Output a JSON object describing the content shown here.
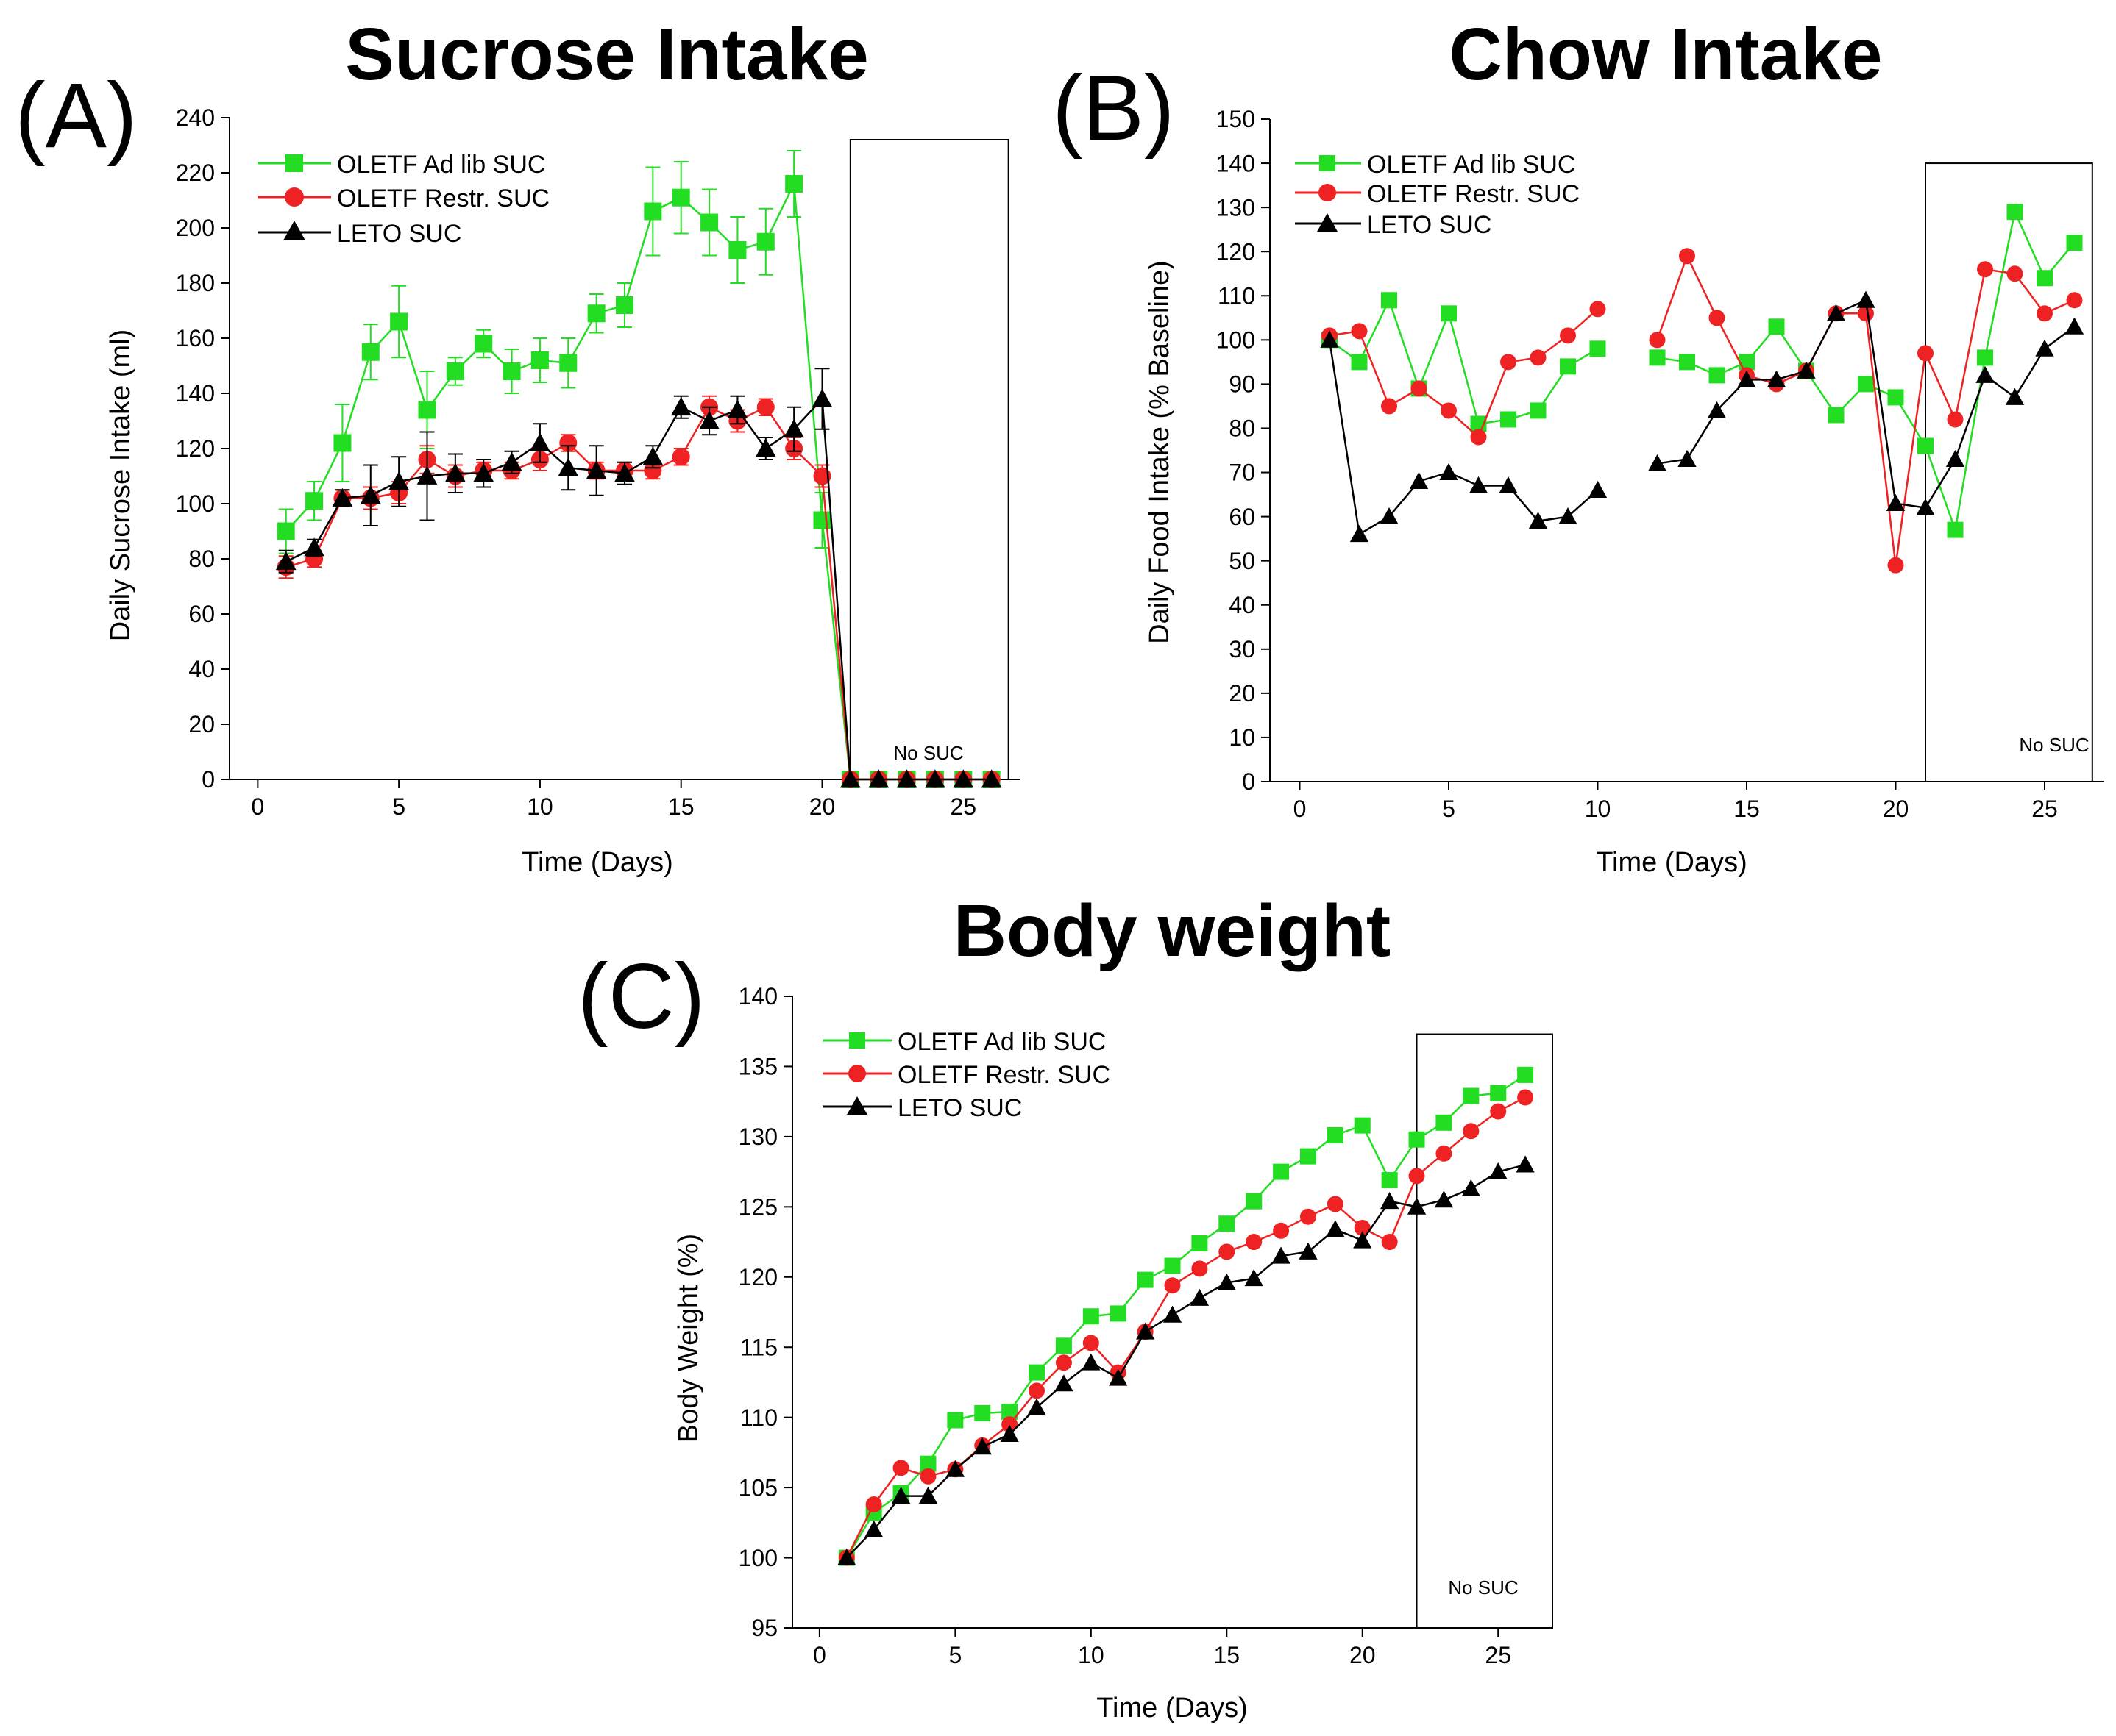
{
  "figure": {
    "legend_placement": "top-left",
    "grid": false,
    "panels": [
      {
        "letter": "(A)"
      },
      {
        "letter": "(B)"
      },
      {
        "letter": "(C)"
      }
    ]
  },
  "chart_data": [
    {
      "type": "line",
      "title": "Sucrose Intake",
      "xlabel": "Time (Days)",
      "ylabel": "Daily Sucrose Intake (ml)",
      "xlim": [
        -1,
        27
      ],
      "ylim": [
        0,
        240
      ],
      "xticks": [
        "0",
        "5",
        "10",
        "15",
        "20",
        "25"
      ],
      "yticks": [
        "0",
        "20",
        "40",
        "60",
        "80",
        "100",
        "120",
        "140",
        "160",
        "180",
        "200",
        "220",
        "240"
      ],
      "annotation": "No SUC",
      "no_suc_range": {
        "x_start": 21,
        "x_end": 26.6,
        "y_top": 232
      },
      "series": [
        {
          "name": "OLETF Ad lib SUC",
          "color": "#22dd22",
          "marker": "square",
          "x": [
            1,
            2,
            3,
            4,
            5,
            6,
            7,
            8,
            9,
            10,
            11,
            12,
            13,
            14,
            15,
            16,
            17,
            18,
            19,
            20,
            21,
            22,
            23,
            24,
            25,
            26
          ],
          "y": [
            90,
            101,
            122,
            155,
            166,
            134,
            148,
            158,
            148,
            152,
            151,
            169,
            172,
            206,
            211,
            202,
            192,
            195,
            216,
            94,
            0,
            0,
            0,
            0,
            0,
            0
          ],
          "err": [
            8,
            7,
            14,
            10,
            13,
            14,
            5,
            5,
            8,
            8,
            9,
            7,
            8,
            16,
            13,
            12,
            12,
            12,
            12,
            10,
            0,
            0,
            0,
            0,
            0,
            0
          ]
        },
        {
          "name": "OLETF Restr. SUC",
          "color": "#ee2222",
          "marker": "circle",
          "x": [
            1,
            2,
            3,
            4,
            5,
            6,
            7,
            8,
            9,
            10,
            11,
            12,
            13,
            14,
            15,
            16,
            17,
            18,
            19,
            20,
            21,
            22,
            23,
            24,
            25,
            26
          ],
          "y": [
            77,
            80,
            102,
            102,
            104,
            116,
            110,
            112,
            112,
            116,
            122,
            112,
            112,
            112,
            117,
            135,
            130,
            135,
            120,
            110,
            0,
            0,
            0,
            0,
            0,
            0
          ],
          "err": [
            4,
            3,
            3,
            4,
            4,
            5,
            4,
            3,
            3,
            4,
            3,
            3,
            3,
            3,
            3,
            4,
            4,
            3,
            4,
            4,
            0,
            0,
            0,
            0,
            0,
            0
          ]
        },
        {
          "name": "LETO SUC",
          "color": "#000000",
          "marker": "triangle",
          "x": [
            1,
            2,
            3,
            4,
            5,
            6,
            7,
            8,
            9,
            10,
            11,
            12,
            13,
            14,
            15,
            16,
            17,
            18,
            19,
            20,
            21,
            22,
            23,
            24,
            25,
            26
          ],
          "y": [
            79,
            84,
            102,
            103,
            108,
            110,
            111,
            111,
            115,
            122,
            113,
            112,
            111,
            117,
            135,
            130,
            134,
            120,
            127,
            138,
            0,
            0,
            0,
            0,
            0,
            0
          ],
          "err": [
            4,
            3,
            3,
            11,
            9,
            16,
            7,
            5,
            4,
            7,
            8,
            9,
            4,
            4,
            4,
            5,
            5,
            4,
            8,
            11,
            0,
            0,
            0,
            0,
            0,
            0
          ]
        }
      ]
    },
    {
      "type": "line",
      "title": "Chow Intake",
      "xlabel": "Time (Days)",
      "ylabel": "Daily Food Intake (% Baseline)",
      "xlim": [
        -1,
        27
      ],
      "ylim": [
        0,
        150
      ],
      "xticks": [
        "0",
        "5",
        "10",
        "15",
        "20",
        "25"
      ],
      "yticks": [
        "0",
        "10",
        "20",
        "30",
        "40",
        "50",
        "60",
        "70",
        "80",
        "90",
        "100",
        "110",
        "120",
        "130",
        "140",
        "150"
      ],
      "annotation": "No SUC",
      "no_suc_range": {
        "x_start": 21,
        "x_end": 26.6,
        "y_top": 140
      },
      "series": [
        {
          "name": "OLETF Ad lib SUC",
          "color": "#22dd22",
          "marker": "square",
          "x": [
            1,
            2,
            3,
            4,
            5,
            6,
            7,
            8,
            9,
            10,
            null,
            12,
            13,
            14,
            15,
            16,
            17,
            18,
            19,
            20,
            21,
            22,
            23,
            24,
            25,
            26
          ],
          "y": [
            100,
            95,
            109,
            89,
            106,
            81,
            82,
            84,
            94,
            98,
            null,
            96,
            95,
            92,
            95,
            103,
            93,
            83,
            90,
            87,
            76,
            57,
            96,
            129,
            114,
            122
          ]
        },
        {
          "name": "OLETF Restr. SUC",
          "color": "#ee2222",
          "marker": "circle",
          "x": [
            1,
            2,
            3,
            4,
            5,
            6,
            7,
            8,
            9,
            10,
            null,
            12,
            13,
            14,
            15,
            16,
            17,
            18,
            19,
            20,
            21,
            22,
            23,
            24,
            25,
            26
          ],
          "y": [
            101,
            102,
            85,
            89,
            84,
            78,
            95,
            96,
            101,
            107,
            null,
            100,
            119,
            105,
            92,
            90,
            93,
            106,
            106,
            49,
            97,
            82,
            116,
            115,
            106,
            109
          ]
        },
        {
          "name": "LETO SUC",
          "color": "#000000",
          "marker": "triangle",
          "x": [
            1,
            2,
            3,
            4,
            5,
            6,
            7,
            8,
            9,
            10,
            null,
            12,
            13,
            14,
            15,
            16,
            17,
            18,
            19,
            20,
            21,
            22,
            23,
            24,
            25,
            26
          ],
          "y": [
            100,
            56,
            60,
            68,
            70,
            67,
            67,
            59,
            60,
            66,
            null,
            72,
            73,
            84,
            91,
            91,
            93,
            106,
            109,
            63,
            62,
            73,
            92,
            87,
            98,
            103
          ]
        }
      ]
    },
    {
      "type": "line",
      "title": "Body weight",
      "xlabel": "Time (Days)",
      "ylabel": "Body Weight (%)",
      "xlim": [
        -1,
        27
      ],
      "ylim": [
        95,
        140
      ],
      "xticks": [
        "0",
        "5",
        "10",
        "15",
        "20",
        "25"
      ],
      "yticks": [
        "95",
        "100",
        "105",
        "110",
        "115",
        "120",
        "125",
        "130",
        "135",
        "140"
      ],
      "annotation": "No SUC",
      "no_suc_range": {
        "x_start": 22,
        "x_end": 27,
        "y_top": 137.3
      },
      "series": [
        {
          "name": "OLETF Ad lib SUC",
          "color": "#22dd22",
          "marker": "square",
          "x": [
            1,
            2,
            3,
            4,
            5,
            6,
            7,
            8,
            9,
            10,
            11,
            12,
            13,
            14,
            15,
            16,
            17,
            18,
            19,
            20,
            21,
            22,
            23,
            24,
            25,
            26
          ],
          "y": [
            100,
            103.2,
            104.6,
            106.7,
            109.8,
            110.3,
            110.4,
            113.2,
            115.1,
            117.2,
            117.4,
            119.8,
            120.8,
            122.4,
            123.8,
            125.4,
            127.5,
            128.6,
            130.1,
            130.8,
            126.9,
            129.8,
            131.0,
            132.9,
            133.1,
            134.4
          ]
        },
        {
          "name": "OLETF Restr. SUC",
          "color": "#ee2222",
          "marker": "circle",
          "x": [
            1,
            2,
            3,
            4,
            5,
            6,
            7,
            8,
            9,
            10,
            11,
            12,
            13,
            14,
            15,
            16,
            17,
            18,
            19,
            20,
            21,
            22,
            23,
            24,
            25,
            26
          ],
          "y": [
            100,
            103.8,
            106.4,
            105.8,
            106.3,
            108.0,
            109.5,
            111.9,
            113.9,
            115.3,
            113.2,
            116.1,
            119.4,
            120.6,
            121.8,
            122.5,
            123.3,
            124.3,
            125.2,
            123.5,
            122.5,
            127.2,
            128.8,
            130.4,
            131.8,
            132.8
          ]
        },
        {
          "name": "LETO SUC",
          "color": "#000000",
          "marker": "triangle",
          "x": [
            1,
            2,
            3,
            4,
            5,
            6,
            7,
            8,
            9,
            10,
            11,
            12,
            13,
            14,
            15,
            16,
            17,
            18,
            19,
            20,
            21,
            22,
            23,
            24,
            25,
            26
          ],
          "y": [
            100,
            102.0,
            104.4,
            104.4,
            106.3,
            107.9,
            108.8,
            110.7,
            112.4,
            113.9,
            112.8,
            116.1,
            117.3,
            118.5,
            119.6,
            119.9,
            121.5,
            121.8,
            123.4,
            122.6,
            125.4,
            125.0,
            125.5,
            126.3,
            127.5,
            128.0
          ]
        }
      ]
    }
  ]
}
